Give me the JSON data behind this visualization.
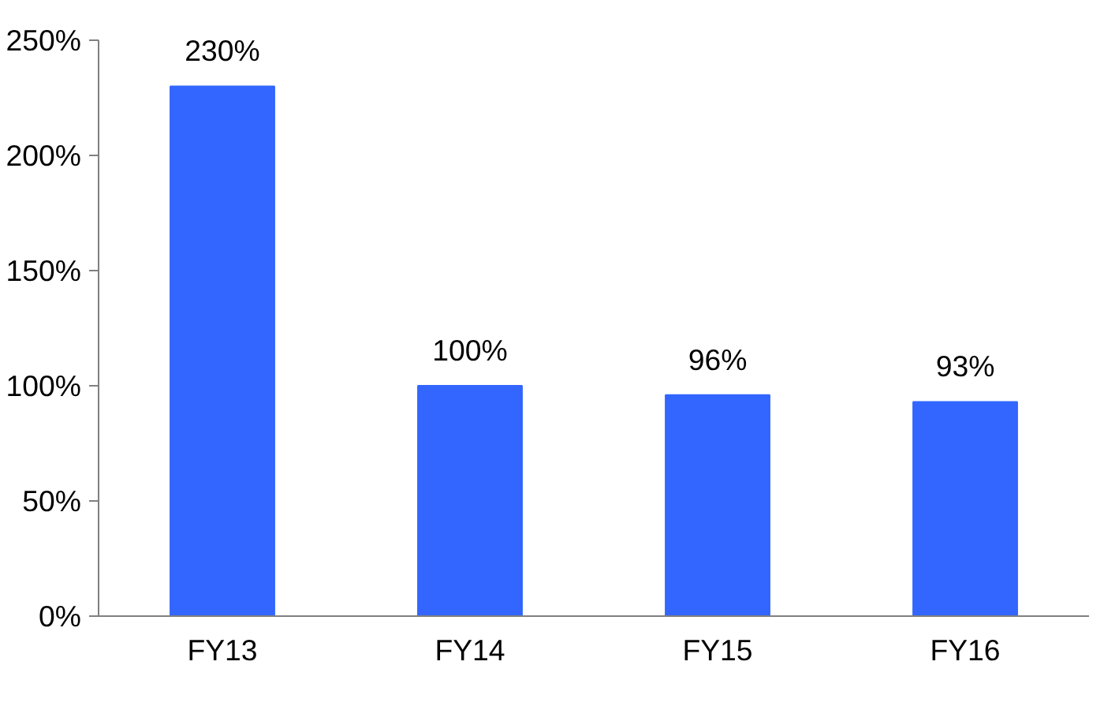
{
  "chart_data": {
    "type": "bar",
    "categories": [
      "FY13",
      "FY14",
      "FY15",
      "FY16"
    ],
    "series": [
      {
        "color": "#3366ff",
        "values": [
          230,
          100,
          96,
          93
        ],
        "value_labels": [
          "230%",
          "100%",
          "96%",
          "93%"
        ]
      }
    ],
    "ylim": [
      0,
      250
    ],
    "yticks": [
      {
        "value": 0,
        "label": "0%"
      },
      {
        "value": 50,
        "label": "50%"
      },
      {
        "value": 100,
        "label": "100%"
      },
      {
        "value": 150,
        "label": "150%"
      },
      {
        "value": 200,
        "label": "200%"
      },
      {
        "value": 250,
        "label": "250%"
      }
    ],
    "grid": false
  }
}
